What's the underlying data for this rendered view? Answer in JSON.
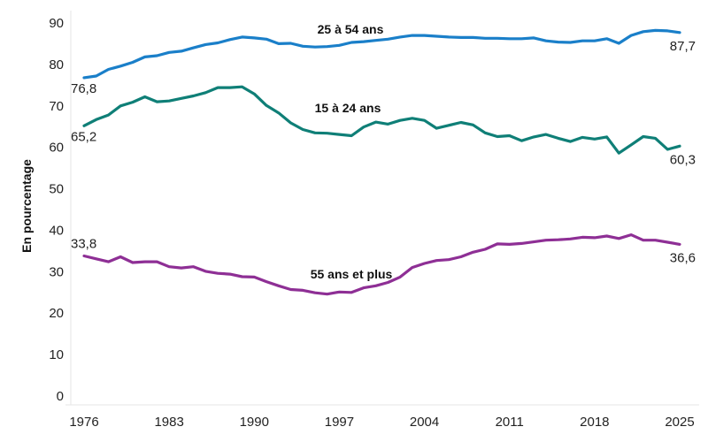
{
  "chart_data": {
    "type": "line",
    "title": "",
    "xlabel": "",
    "ylabel": "En pourcentage",
    "ylim": [
      0,
      90
    ],
    "yticks": [
      0,
      10,
      20,
      30,
      40,
      50,
      60,
      70,
      80,
      90
    ],
    "xlim": [
      1976,
      2025
    ],
    "xticks": [
      1976,
      1983,
      1990,
      1997,
      2004,
      2011,
      2018,
      2025
    ],
    "grid": false,
    "x_start": 1976,
    "series": [
      {
        "name": "25 à 54 ans",
        "color": "#1a7fc9",
        "start_label": "76,8",
        "end_label": "87,7",
        "values": [
          76.8,
          77.2,
          78.8,
          79.6,
          80.5,
          81.8,
          82.1,
          82.9,
          83.2,
          84.0,
          84.8,
          85.2,
          86.0,
          86.6,
          86.4,
          86.1,
          85.0,
          85.1,
          84.4,
          84.2,
          84.3,
          84.6,
          85.3,
          85.5,
          85.8,
          86.1,
          86.6,
          87.0,
          87.0,
          86.8,
          86.6,
          86.5,
          86.5,
          86.3,
          86.3,
          86.2,
          86.2,
          86.4,
          85.7,
          85.4,
          85.3,
          85.7,
          85.7,
          86.2,
          85.1,
          87.0,
          87.9,
          88.2,
          88.1,
          87.7
        ]
      },
      {
        "name": "15 à 24 ans",
        "color": "#0f7f77",
        "start_label": "65,2",
        "end_label": "60,3",
        "values": [
          65.2,
          66.7,
          67.8,
          70.0,
          70.9,
          72.2,
          71.0,
          71.2,
          71.8,
          72.4,
          73.2,
          74.4,
          74.4,
          74.6,
          72.9,
          70.1,
          68.3,
          65.9,
          64.3,
          63.5,
          63.4,
          63.1,
          62.8,
          64.9,
          66.1,
          65.6,
          66.5,
          67.0,
          66.5,
          64.6,
          65.3,
          66.0,
          65.4,
          63.5,
          62.6,
          62.8,
          61.6,
          62.5,
          63.1,
          62.2,
          61.4,
          62.4,
          62.0,
          62.5,
          58.6,
          60.6,
          62.6,
          62.2,
          59.5,
          60.3
        ]
      },
      {
        "name": "55 ans et plus",
        "color": "#8e2f95",
        "start_label": "33,8",
        "end_label": "36,6",
        "values": [
          33.8,
          33.1,
          32.4,
          33.6,
          32.2,
          32.4,
          32.4,
          31.2,
          30.9,
          31.2,
          30.1,
          29.6,
          29.4,
          28.8,
          28.7,
          27.6,
          26.6,
          25.7,
          25.5,
          24.9,
          24.6,
          25.1,
          25.0,
          26.1,
          26.6,
          27.4,
          28.7,
          31.0,
          32.0,
          32.7,
          32.9,
          33.6,
          34.7,
          35.4,
          36.7,
          36.6,
          36.8,
          37.2,
          37.6,
          37.7,
          37.9,
          38.3,
          38.2,
          38.6,
          38.0,
          38.9,
          37.6,
          37.6,
          37.1,
          36.6
        ]
      }
    ]
  }
}
